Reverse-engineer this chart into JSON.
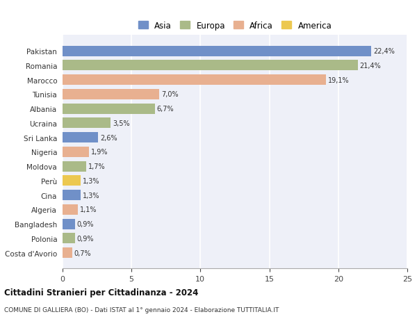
{
  "countries": [
    "Pakistan",
    "Romania",
    "Marocco",
    "Tunisia",
    "Albania",
    "Ucraina",
    "Sri Lanka",
    "Nigeria",
    "Moldova",
    "Perù",
    "Cina",
    "Algeria",
    "Bangladesh",
    "Polonia",
    "Costa d'Avorio"
  ],
  "values": [
    22.4,
    21.4,
    19.1,
    7.0,
    6.7,
    3.5,
    2.6,
    1.9,
    1.7,
    1.3,
    1.3,
    1.1,
    0.9,
    0.9,
    0.7
  ],
  "labels": [
    "22,4%",
    "21,4%",
    "19,1%",
    "7,0%",
    "6,7%",
    "3,5%",
    "2,6%",
    "1,9%",
    "1,7%",
    "1,3%",
    "1,3%",
    "1,1%",
    "0,9%",
    "0,9%",
    "0,7%"
  ],
  "continents": [
    "Asia",
    "Europa",
    "Africa",
    "Africa",
    "Europa",
    "Europa",
    "Asia",
    "Africa",
    "Europa",
    "America",
    "Asia",
    "Africa",
    "Asia",
    "Europa",
    "Africa"
  ],
  "colors": {
    "Asia": "#7090C8",
    "Europa": "#AABA88",
    "Africa": "#E8B090",
    "America": "#ECC850"
  },
  "legend_order": [
    "Asia",
    "Europa",
    "Africa",
    "America"
  ],
  "title1": "Cittadini Stranieri per Cittadinanza - 2024",
  "title2": "COMUNE DI GALLIERA (BO) - Dati ISTAT al 1° gennaio 2024 - Elaborazione TUTTITALIA.IT",
  "xlim": [
    0,
    25
  ],
  "xticks": [
    0,
    5,
    10,
    15,
    20,
    25
  ],
  "plot_bg_color": "#EEF0F8",
  "fig_bg_color": "#ffffff",
  "grid_color": "#ffffff"
}
